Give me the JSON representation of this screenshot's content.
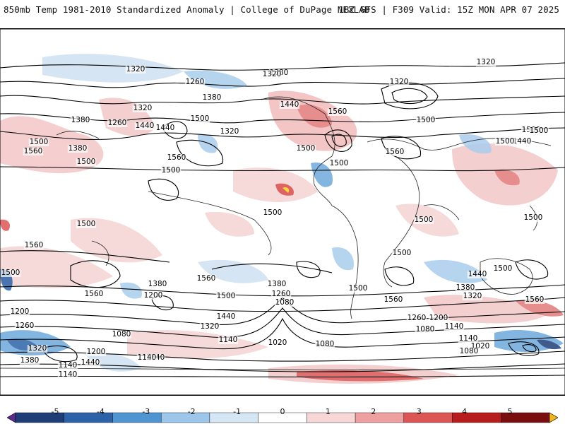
{
  "header": {
    "left_title": "850mb Temp 1981-2010 Standardized Anomaly | College of DuPage NEXLAB",
    "right_title": "18Z GFS | F309 Valid: 15Z MON APR 07 2025"
  },
  "colorbar": {
    "ticks": [
      "-5",
      "-4",
      "-3",
      "-2",
      "-1",
      "0",
      "1",
      "2",
      "3",
      "4",
      "5"
    ],
    "colors": [
      "#5b2c8e",
      "#1f3e78",
      "#2c63a8",
      "#4f95d2",
      "#9cc6ea",
      "#d5e6f5",
      "#ffffff",
      "#f7d6d6",
      "#eea0a0",
      "#dc5656",
      "#b81d1d",
      "#7a0e0e",
      "#f2b41b"
    ]
  },
  "map": {
    "contour_labels": [
      "1320",
      "1320",
      "1380",
      "1320",
      "1260",
      "1380",
      "1320",
      "1440",
      "1560",
      "1320",
      "1380",
      "1440",
      "1500",
      "1500",
      "1320",
      "1260",
      "1380",
      "1500",
      "1560",
      "1500",
      "1440",
      "1500",
      "1500",
      "1560",
      "1440",
      "1560",
      "1500",
      "1500",
      "1500",
      "1500",
      "1560",
      "1500",
      "1500",
      "1500",
      "1440",
      "1500",
      "1500",
      "1560",
      "1380",
      "1200",
      "1380",
      "1260",
      "1080",
      "1500",
      "1440",
      "1320",
      "1560",
      "1560",
      "1380",
      "1320",
      "1260",
      "1200",
      "1080",
      "1140",
      "1080",
      "1140",
      "1020",
      "1080",
      "1140",
      "1020",
      "1200",
      "1140",
      "1080",
      "1320",
      "1380",
      "1140",
      "1440",
      "1140",
      "1260",
      "1200",
      "1140",
      "1560",
      "1500",
      "1500",
      "1500"
    ]
  }
}
